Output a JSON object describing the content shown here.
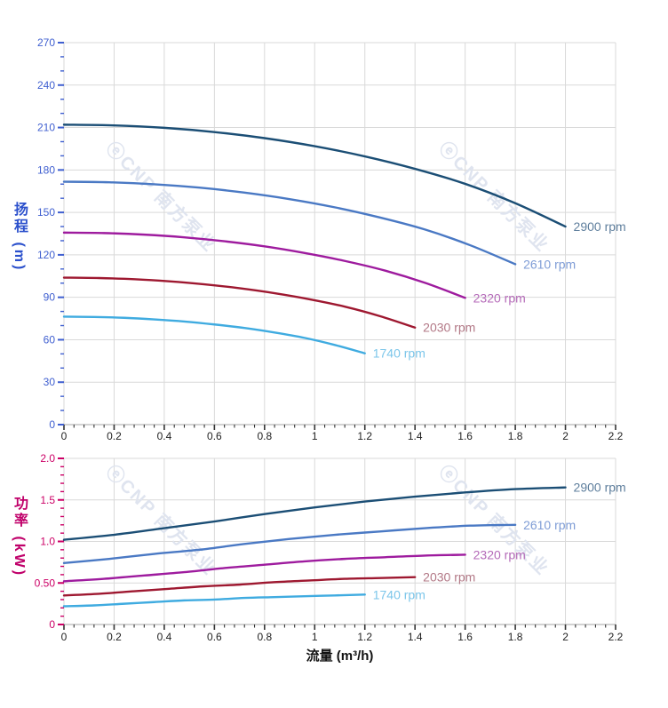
{
  "watermark": {
    "logo": "ⓔ",
    "text": "CNP 南方泵业",
    "color": "#dfe4ef"
  },
  "chart_data": [
    {
      "type": "line",
      "title": "",
      "xlabel": "流量 (m³/h)",
      "ylabel": "扬程 (m)",
      "xlim": [
        0,
        2.2
      ],
      "ylim": [
        0,
        270
      ],
      "grid": true,
      "legend_position": "end-of-curve",
      "x_ticks": [
        0,
        0.2,
        0.4,
        0.6,
        0.8,
        1,
        1.2,
        1.4,
        1.6,
        1.8,
        2,
        2.2
      ],
      "x_tick_labels": [
        "0",
        "0.2",
        "0.4",
        "0.6",
        "0.8",
        "1",
        "1.2",
        "1.4",
        "1.6",
        "1.8",
        "2",
        "2.2"
      ],
      "x_minor_step": 0.04,
      "y_ticks": [
        0,
        30,
        60,
        90,
        120,
        150,
        180,
        210,
        240,
        270
      ],
      "y_tick_labels": [
        "0",
        "30",
        "60",
        "90",
        "120",
        "150",
        "180",
        "210",
        "240",
        "270"
      ],
      "y_minor_step": 10,
      "axis_label_color": "#2b50cc",
      "tick_label_color": "#3f5fd0",
      "x_tick_label_color": "#222222",
      "series": [
        {
          "name": "2900 rpm",
          "color": "#1b4e75",
          "label_color": "#5f7f9d",
          "x": [
            0,
            0.2,
            0.4,
            0.6,
            0.8,
            1,
            1.2,
            1.4,
            1.6,
            1.8,
            2
          ],
          "y": [
            212,
            211.5,
            209.8,
            206.8,
            202.5,
            196.8,
            189.6,
            180.8,
            170.2,
            156.5,
            140
          ]
        },
        {
          "name": "2610 rpm",
          "color": "#4a79c4",
          "label_color": "#7f9dd6",
          "x": [
            0,
            0.18,
            0.36,
            0.54,
            0.72,
            0.9,
            1.08,
            1.26,
            1.44,
            1.62,
            1.8
          ],
          "y": [
            171.7,
            171.3,
            169.9,
            167.5,
            164,
            159.4,
            153.6,
            146.4,
            137.9,
            126.8,
            113.4
          ]
        },
        {
          "name": "2320 rpm",
          "color": "#9e1b9e",
          "label_color": "#b46ab8",
          "x": [
            0,
            0.16,
            0.32,
            0.48,
            0.64,
            0.8,
            0.96,
            1.12,
            1.28,
            1.44,
            1.6
          ],
          "y": [
            135.7,
            135.4,
            134.3,
            132.4,
            129.6,
            126,
            121.3,
            115.7,
            108.9,
            100.2,
            89.6
          ]
        },
        {
          "name": "2030 rpm",
          "color": "#9e1830",
          "label_color": "#b27886",
          "x": [
            0,
            0.14,
            0.28,
            0.42,
            0.56,
            0.7,
            0.84,
            0.98,
            1.12,
            1.26,
            1.4
          ],
          "y": [
            103.9,
            103.6,
            102.8,
            101.3,
            99.2,
            96.4,
            92.9,
            88.6,
            83.4,
            76.7,
            68.6
          ]
        },
        {
          "name": "1740 rpm",
          "color": "#3fabe0",
          "label_color": "#7cc6ea",
          "x": [
            0,
            0.12,
            0.24,
            0.36,
            0.48,
            0.6,
            0.72,
            0.84,
            0.96,
            1.08,
            1.2
          ],
          "y": [
            76.3,
            76.1,
            75.5,
            74.4,
            72.9,
            70.8,
            68.3,
            65.1,
            61.3,
            56.3,
            50.4
          ]
        }
      ]
    },
    {
      "type": "line",
      "title": "",
      "xlabel": "流量 (m³/h)",
      "ylabel": "功率 (kW)",
      "xlim": [
        0,
        2.2
      ],
      "ylim": [
        0,
        2
      ],
      "grid": true,
      "legend_position": "end-of-curve",
      "x_ticks": [
        0,
        0.2,
        0.4,
        0.6,
        0.8,
        1,
        1.2,
        1.4,
        1.6,
        1.8,
        2,
        2.2
      ],
      "x_tick_labels": [
        "0",
        "0.2",
        "0.4",
        "0.6",
        "0.8",
        "1",
        "1.2",
        "1.4",
        "1.6",
        "1.8",
        "2",
        "2.2"
      ],
      "x_minor_step": 0.04,
      "y_ticks": [
        0,
        0.5,
        1,
        1.5,
        2
      ],
      "y_tick_labels": [
        "0",
        "0.50",
        "1.0",
        "1.5",
        "2.0"
      ],
      "y_minor_step": 0.1,
      "axis_label_color": "#c0006a",
      "tick_label_color": "#cc0066",
      "x_tick_label_color": "#222222",
      "series": [
        {
          "name": "2900 rpm",
          "color": "#1b4e75",
          "label_color": "#5f7f9d",
          "x": [
            0,
            0.2,
            0.4,
            0.6,
            0.8,
            1,
            1.2,
            1.4,
            1.6,
            1.8,
            2
          ],
          "y": [
            1.02,
            1.08,
            1.16,
            1.24,
            1.33,
            1.41,
            1.48,
            1.54,
            1.59,
            1.63,
            1.65
          ]
        },
        {
          "name": "2610 rpm",
          "color": "#4a79c4",
          "label_color": "#7f9dd6",
          "x": [
            0,
            0.18,
            0.36,
            0.54,
            0.72,
            0.9,
            1.08,
            1.26,
            1.44,
            1.62,
            1.8
          ],
          "y": [
            0.74,
            0.79,
            0.85,
            0.9,
            0.97,
            1.03,
            1.08,
            1.12,
            1.16,
            1.19,
            1.2
          ]
        },
        {
          "name": "2320 rpm",
          "color": "#9e1b9e",
          "label_color": "#b46ab8",
          "x": [
            0,
            0.16,
            0.32,
            0.48,
            0.64,
            0.8,
            0.96,
            1.12,
            1.28,
            1.44,
            1.6
          ],
          "y": [
            0.52,
            0.55,
            0.59,
            0.63,
            0.68,
            0.72,
            0.76,
            0.79,
            0.81,
            0.83,
            0.84
          ]
        },
        {
          "name": "2030 rpm",
          "color": "#9e1830",
          "label_color": "#b27886",
          "x": [
            0,
            0.14,
            0.28,
            0.42,
            0.56,
            0.7,
            0.84,
            0.98,
            1.12,
            1.26,
            1.4
          ],
          "y": [
            0.35,
            0.37,
            0.4,
            0.43,
            0.46,
            0.48,
            0.51,
            0.53,
            0.55,
            0.56,
            0.57
          ]
        },
        {
          "name": "1740 rpm",
          "color": "#3fabe0",
          "label_color": "#7cc6ea",
          "x": [
            0,
            0.12,
            0.24,
            0.36,
            0.48,
            0.6,
            0.72,
            0.84,
            0.96,
            1.08,
            1.2
          ],
          "y": [
            0.22,
            0.23,
            0.25,
            0.27,
            0.29,
            0.3,
            0.32,
            0.33,
            0.34,
            0.35,
            0.36
          ]
        }
      ]
    }
  ]
}
